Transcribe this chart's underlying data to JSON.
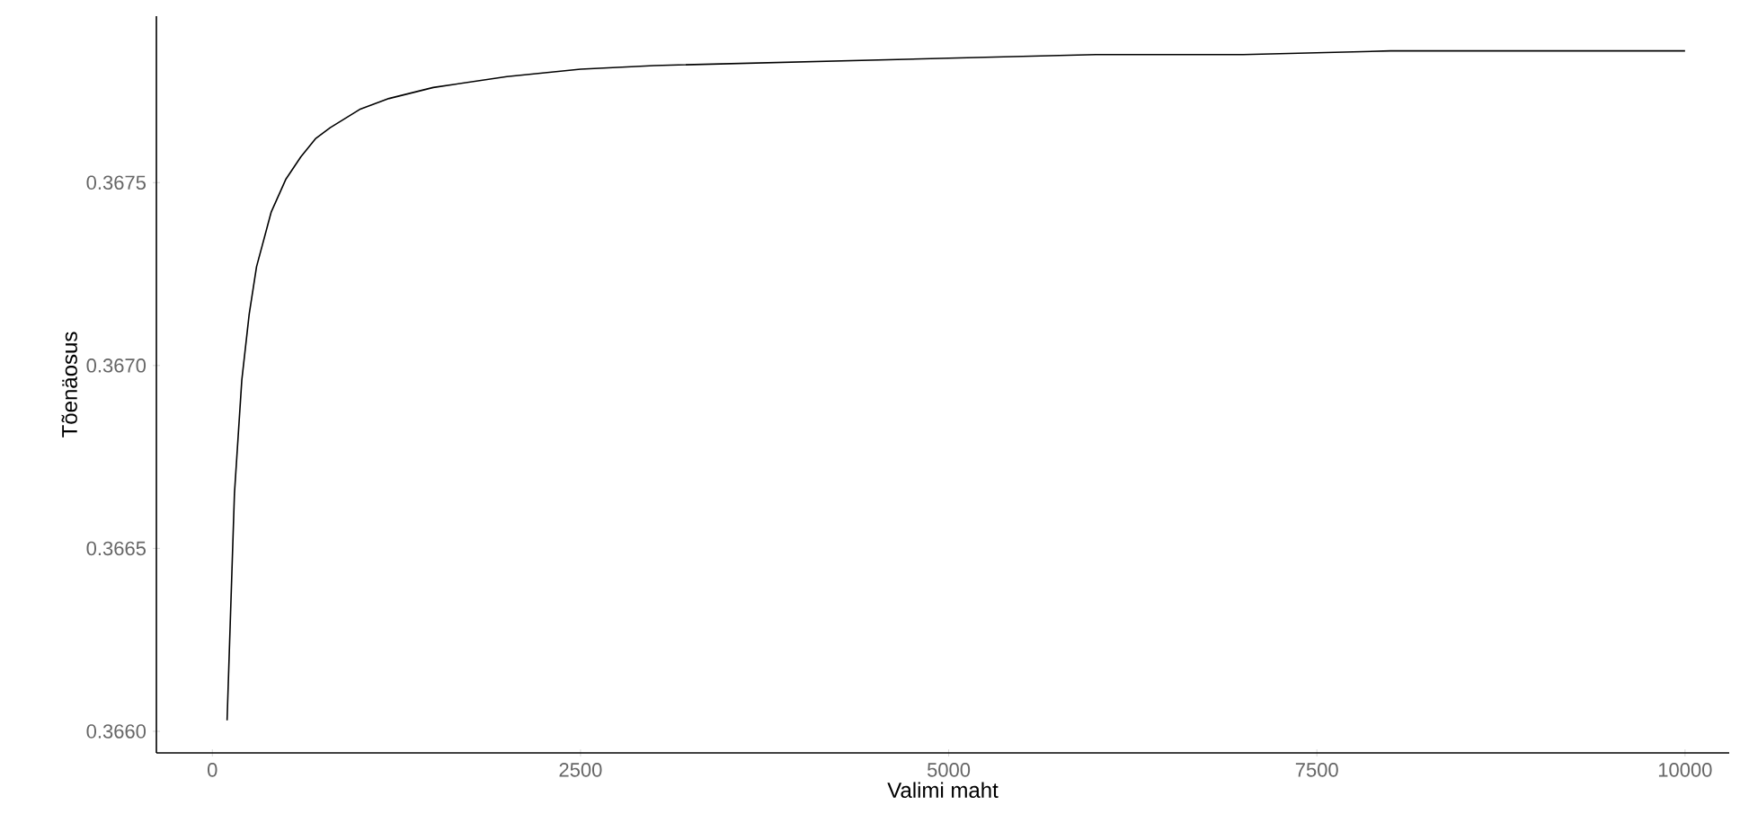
{
  "chart_data": {
    "type": "line",
    "xlabel": "Valimi maht",
    "ylabel": "Tõenäosus",
    "x": [
      100,
      150,
      200,
      250,
      300,
      400,
      500,
      600,
      700,
      800,
      1000,
      1200,
      1500,
      2000,
      2500,
      3000,
      4000,
      5000,
      6000,
      7000,
      8000,
      9000,
      10000
    ],
    "series": [
      {
        "color": "#000000",
        "values": [
          0.36603,
          0.36665,
          0.36696,
          0.36714,
          0.36727,
          0.36742,
          0.36751,
          0.36757,
          0.36762,
          0.36765,
          0.3677,
          0.36773,
          0.36776,
          0.36779,
          0.36781,
          0.36782,
          0.36783,
          0.36784,
          0.36785,
          0.36785,
          0.36786,
          0.36786,
          0.36786
        ]
      }
    ],
    "xlim": [
      -380,
      10300
    ],
    "ylim": [
      0.365941,
      0.367955
    ],
    "xticks": [
      0,
      2500,
      5000,
      7500,
      10000
    ],
    "yticks": [
      {
        "value": 0.366,
        "label": "0.3660"
      },
      {
        "value": 0.3665,
        "label": "0.3665"
      },
      {
        "value": 0.367,
        "label": "0.3670"
      },
      {
        "value": 0.3675,
        "label": "0.3675"
      }
    ],
    "grid": false,
    "marker": "none",
    "line_style": "solid"
  }
}
